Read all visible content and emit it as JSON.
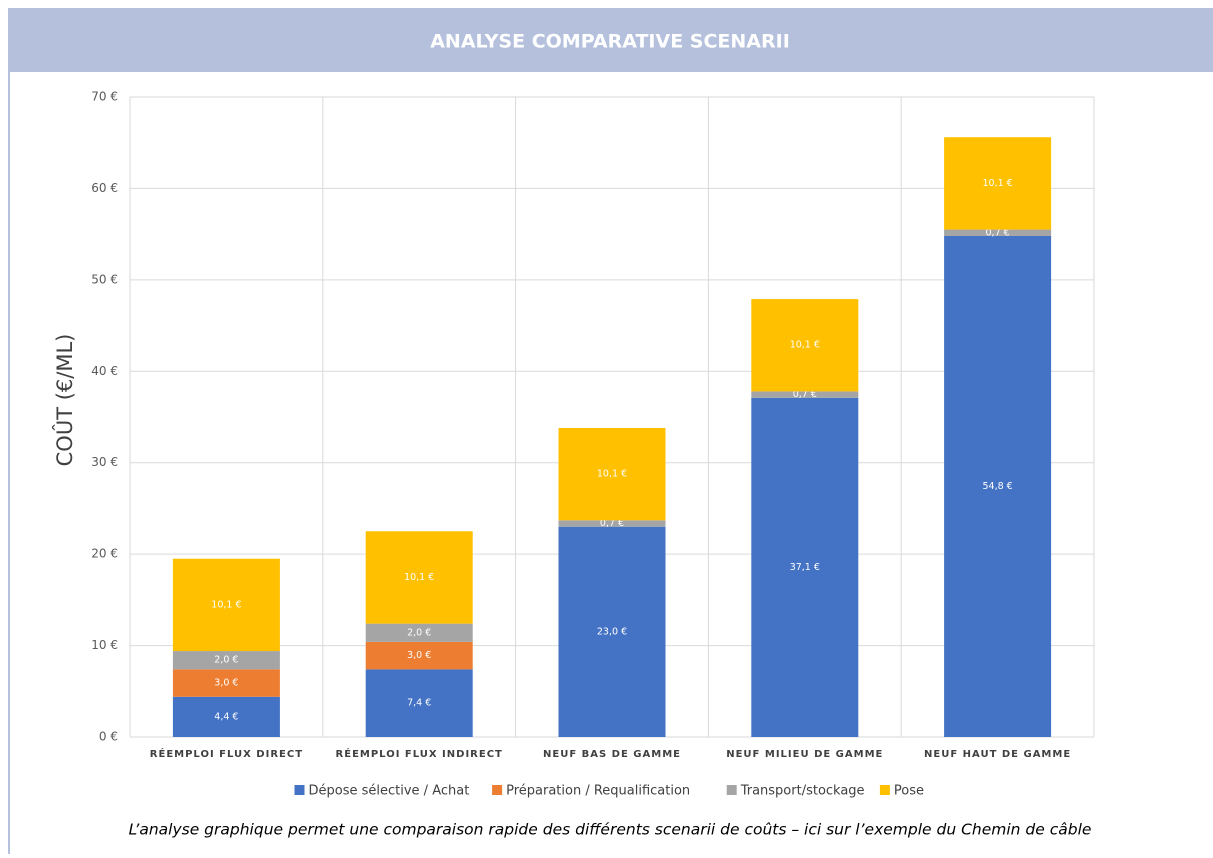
{
  "chart_data": {
    "type": "stacked_bar",
    "title": "ANALYSE COMPARATIVE SCENARII",
    "y_label": "COÛT (€/ML)",
    "caption": "L’analyse graphique permet une comparaison rapide des différents scenarii de coûts – ici sur l’exemple du Chemin de câble",
    "categories": [
      "RÉEMPLOI FLUX DIRECT",
      "RÉEMPLOI FLUX INDIRECT",
      "NEUF BAS DE GAMME",
      "NEUF MILIEU DE GAMME",
      "NEUF HAUT DE GAMME"
    ],
    "series": [
      {
        "name": "Dépose sélective / Achat",
        "color": "#4472c4",
        "values": [
          4.4,
          7.4,
          23.0,
          37.1,
          54.8
        ],
        "value_labels": [
          "4,4 €",
          "7,4 €",
          "23,0 €",
          "37,1 €",
          "54,8 €"
        ]
      },
      {
        "name": "Préparation / Requalification",
        "color": "#ed7d31",
        "values": [
          3.0,
          3.0,
          null,
          null,
          null
        ],
        "value_labels": [
          "3,0 €",
          "3,0 €",
          null,
          null,
          null
        ]
      },
      {
        "name": "Transport/stockage",
        "color": "#a5a5a5",
        "values": [
          2.0,
          2.0,
          0.7,
          0.7,
          0.7
        ],
        "value_labels": [
          "2,0 €",
          "2,0 €",
          "0,7 €",
          "0,7 €",
          "0,7 €"
        ]
      },
      {
        "name": "Pose",
        "color": "#ffc000",
        "values": [
          10.1,
          10.1,
          10.1,
          10.1,
          10.1
        ],
        "value_labels": [
          "10,1 €",
          "10,1 €",
          "10,1 €",
          "10,1 €",
          "10,1 €"
        ]
      }
    ],
    "ylim": [
      0,
      70
    ],
    "yticks": [
      {
        "value": 0,
        "label": "0 €"
      },
      {
        "value": 10,
        "label": "10 €"
      },
      {
        "value": 20,
        "label": "20 €"
      },
      {
        "value": 30,
        "label": "30 €"
      },
      {
        "value": 40,
        "label": "40 €"
      },
      {
        "value": 50,
        "label": "50 €"
      },
      {
        "value": 60,
        "label": "60 €"
      },
      {
        "value": 70,
        "label": "70 €"
      }
    ],
    "grid": true,
    "legend": "bottom"
  }
}
